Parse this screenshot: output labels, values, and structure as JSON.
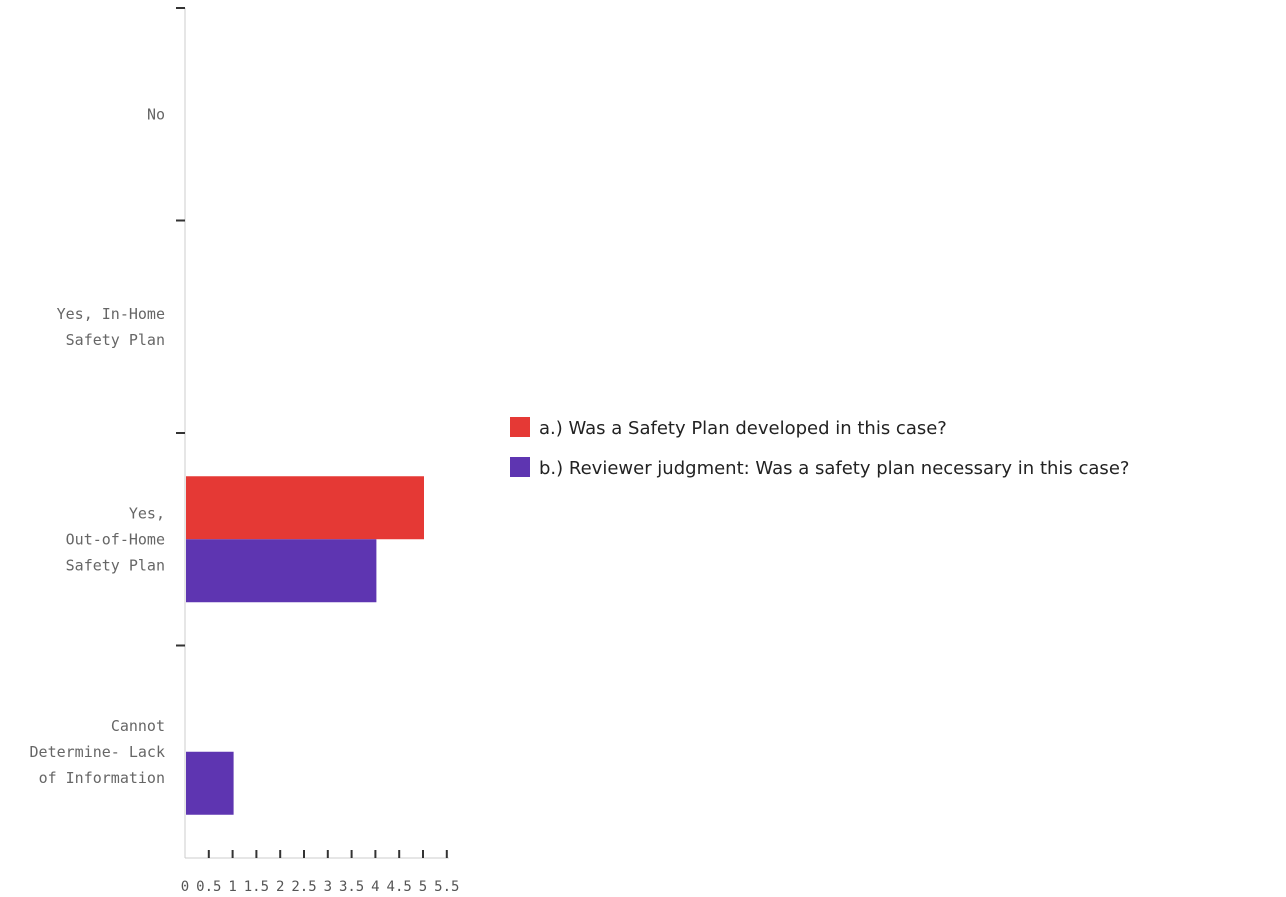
{
  "chart_data": {
    "type": "bar",
    "orientation": "horizontal",
    "categories": [
      [
        "No"
      ],
      [
        "Yes, In-Home",
        "Safety Plan"
      ],
      [
        "Yes,",
        "Out-of-Home",
        "Safety Plan"
      ],
      [
        "Cannot",
        "Determine- Lack",
        "of Information"
      ]
    ],
    "series": [
      {
        "name": "a.) Was a Safety Plan developed in this case?",
        "color": "#e53935",
        "values": [
          0,
          0,
          5,
          0
        ]
      },
      {
        "name": "b.) Reviewer judgment: Was a safety plan necessary in this case?",
        "color": "#5e35b1",
        "values": [
          0,
          0,
          4,
          1
        ]
      }
    ],
    "xlim": [
      0,
      5.5
    ],
    "xticks": [
      0,
      0.5,
      1,
      1.5,
      2,
      2.5,
      3,
      3.5,
      4,
      4.5,
      5,
      5.5
    ],
    "xtick_labels": [
      "0",
      "0.5",
      "1",
      "1.5",
      "2",
      "2.5",
      "3",
      "3.5",
      "4",
      "4.5",
      "5",
      "5.5"
    ],
    "title": "",
    "xlabel": "",
    "ylabel": "",
    "grid": false,
    "legend_position": "right"
  }
}
